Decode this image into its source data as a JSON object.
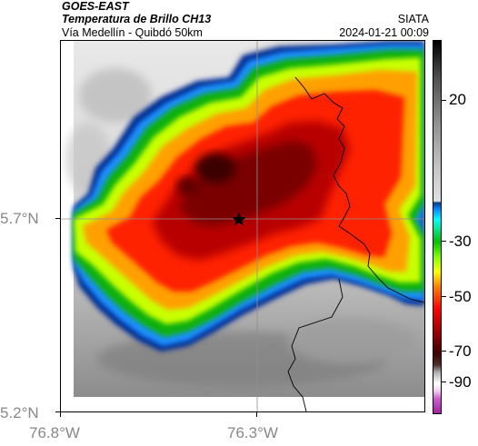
{
  "header": {
    "satellite": "GOES-EAST",
    "product": "Temperatura de Brillo CH13",
    "region": "Vía Medellín - Quibdó 50km",
    "org": "SIATA",
    "datetime": "2024-01-21 00:09"
  },
  "axes": {
    "lat_labels": [
      "5.7°N",
      "5.2°N"
    ],
    "lon_labels": [
      "76.8°W",
      "76.3°W"
    ]
  },
  "colorbar": {
    "labels": [
      "20",
      "-30",
      "-50",
      "-70",
      "-90"
    ],
    "levels": [
      20,
      -30,
      -50,
      -70,
      -90
    ]
  },
  "map": {
    "marker_icon": "star-icon",
    "colors": {
      "clear_sky": "#c8c8c8",
      "cold_core": "#5a0000",
      "cloud_edge_blue": "#0030a0"
    }
  }
}
